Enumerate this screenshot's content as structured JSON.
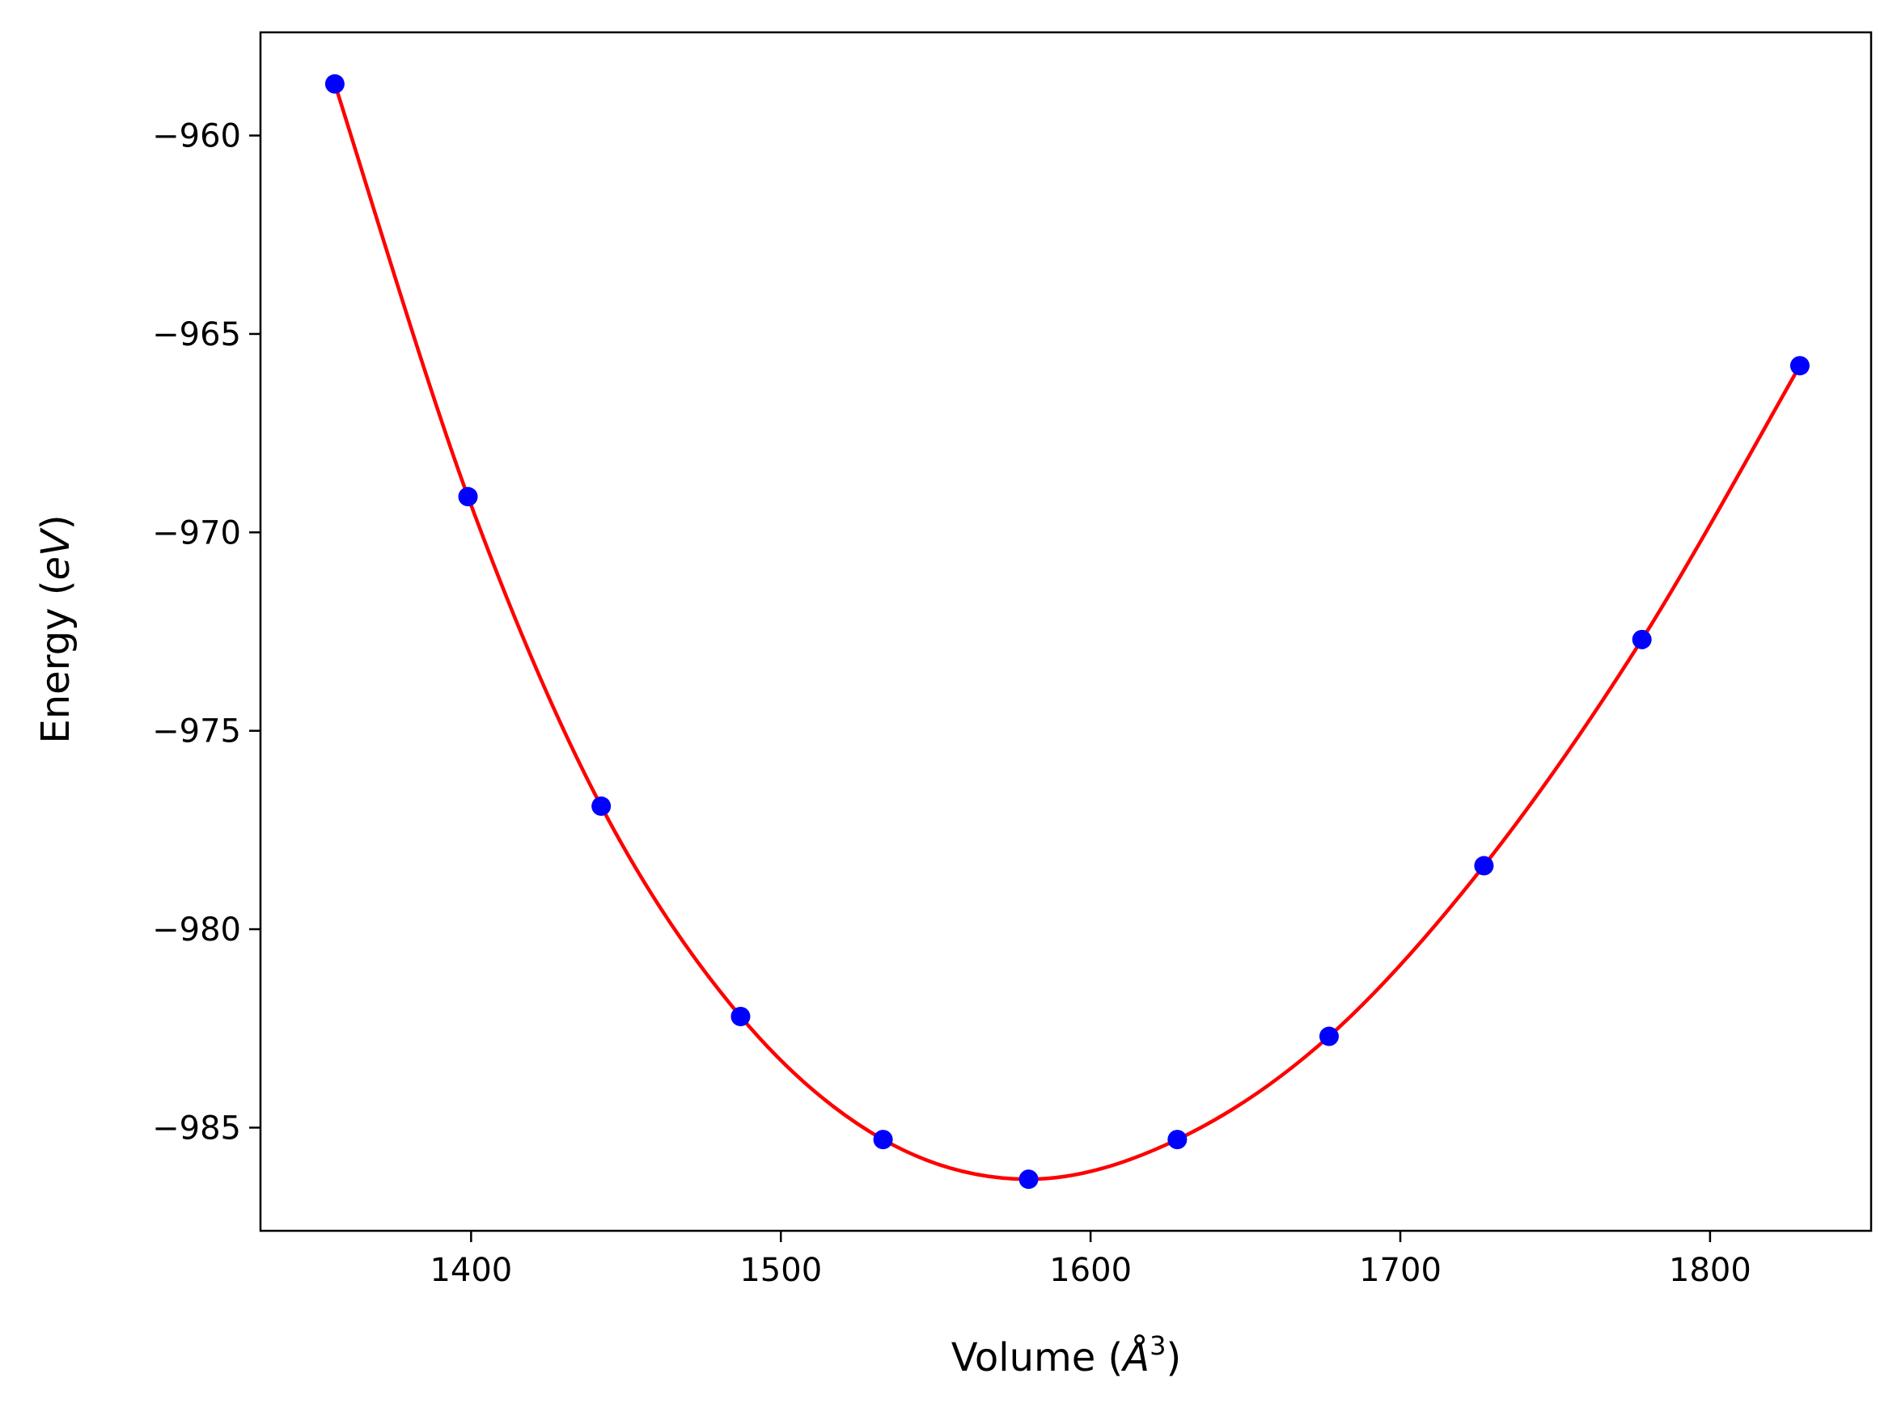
{
  "chart_data": {
    "type": "scatter",
    "title": "",
    "xlabel": "Volume (",
    "xlabel_symbol": "Å",
    "xlabel_exponent": "3",
    "xlabel_close": ")",
    "ylabel": "Energy (",
    "ylabel_unit": "eV",
    "ylabel_close": ")",
    "xlim": [
      1332,
      1852
    ],
    "ylim": [
      -987.6,
      -957.4
    ],
    "xticks": [
      1400,
      1500,
      1600,
      1700,
      1800
    ],
    "xtick_labels": [
      "1400",
      "1500",
      "1600",
      "1700",
      "1800"
    ],
    "yticks": [
      -960,
      -965,
      -970,
      -975,
      -980,
      -985
    ],
    "ytick_labels": [
      "−960",
      "−965",
      "−970",
      "−975",
      "−980",
      "−985"
    ],
    "grid": false,
    "series": [
      {
        "kind": "points",
        "color": "#0000ff",
        "x": [
          1356,
          1399,
          1442,
          1487,
          1533,
          1580,
          1628,
          1677,
          1727,
          1778,
          1829
        ],
        "y": [
          -958.7,
          -969.1,
          -976.9,
          -982.2,
          -985.3,
          -986.3,
          -985.3,
          -982.7,
          -978.4,
          -972.7,
          -965.8
        ]
      },
      {
        "kind": "fit-curve",
        "color": "#ff0000",
        "x": [
          1356,
          1399,
          1442,
          1487,
          1533,
          1580,
          1628,
          1677,
          1727,
          1778,
          1829
        ],
        "y": [
          -958.7,
          -969.1,
          -976.9,
          -982.2,
          -985.3,
          -986.3,
          -985.3,
          -982.7,
          -978.4,
          -972.7,
          -965.8
        ]
      }
    ]
  }
}
